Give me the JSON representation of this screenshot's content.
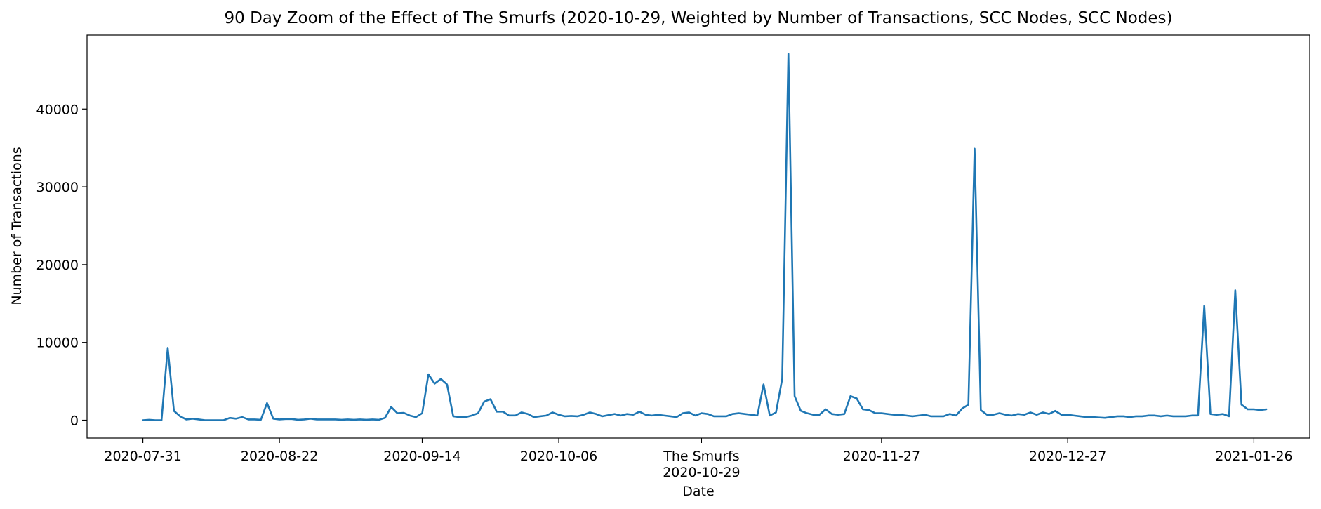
{
  "chart_data": {
    "type": "line",
    "title": "90 Day Zoom of the Effect of The Smurfs (2020-10-29, Weighted by Number of Transactions, SCC Nodes, SCC Nodes)",
    "xlabel": "Date",
    "ylabel": "Number of Transactions",
    "x_range": [
      "2020-07-22",
      "2021-01-35"
    ],
    "xlim": [
      "2020-07-22",
      "2021-02-04"
    ],
    "ylim": [
      -2300,
      49500
    ],
    "grid": false,
    "color": "#1f77b4",
    "x_ticks": [
      {
        "date": "2020-07-31",
        "label": "2020-07-31"
      },
      {
        "date": "2020-08-22",
        "label": "2020-08-22"
      },
      {
        "date": "2020-09-14",
        "label": "2020-09-14"
      },
      {
        "date": "2020-10-06",
        "label": "2020-10-06"
      },
      {
        "date": "2020-10-29",
        "label": "The Smurfs",
        "label2": "2020-10-29"
      },
      {
        "date": "2020-11-27",
        "label": "2020-11-27"
      },
      {
        "date": "2020-12-27",
        "label": "2020-12-27"
      },
      {
        "date": "2021-01-26",
        "label": "2021-01-26"
      }
    ],
    "y_ticks": [
      0,
      10000,
      20000,
      30000,
      40000
    ],
    "y_tick_labels": [
      "0",
      "10000",
      "20000",
      "30000",
      "40000"
    ],
    "series": [
      {
        "start_date": "2020-07-31",
        "values": [
          0,
          50,
          0,
          0,
          9300,
          1200,
          500,
          100,
          200,
          100,
          0,
          0,
          0,
          0,
          300,
          200,
          400,
          100,
          100,
          50,
          2200,
          200,
          100,
          150,
          150,
          50,
          100,
          200,
          100,
          100,
          100,
          100,
          50,
          100,
          50,
          100,
          50,
          100,
          50,
          300,
          1700,
          900,
          950,
          600,
          400,
          900,
          5900,
          4700,
          5300,
          4600,
          500,
          400,
          400,
          600,
          900,
          2400,
          2700,
          1100,
          1100,
          600,
          600,
          1000,
          800,
          400,
          500,
          600,
          1000,
          700,
          500,
          550,
          500,
          700,
          1000,
          800,
          500,
          650,
          800,
          600,
          800,
          700,
          1100,
          700,
          600,
          700,
          600,
          500,
          400,
          900,
          1000,
          600,
          900,
          800,
          500,
          500,
          500,
          800,
          900,
          800,
          700,
          600,
          4600,
          600,
          1000,
          5300,
          47100,
          3100,
          1200,
          900,
          700,
          700,
          1400,
          800,
          700,
          800,
          3100,
          2800,
          1400,
          1300,
          900,
          900,
          800,
          700,
          700,
          600,
          500,
          600,
          700,
          500,
          500,
          500,
          800,
          600,
          1500,
          2000,
          34900,
          1300,
          700,
          700,
          900,
          700,
          600,
          800,
          700,
          1000,
          700,
          1000,
          800,
          1200,
          700,
          700,
          600,
          500,
          400,
          400,
          350,
          300,
          400,
          500,
          500,
          400,
          500,
          500,
          600,
          600,
          500,
          600,
          500,
          500,
          500,
          600,
          600,
          14700,
          800,
          700,
          800,
          500,
          16700,
          2000,
          1400,
          1400,
          1300,
          1400
        ]
      }
    ]
  }
}
